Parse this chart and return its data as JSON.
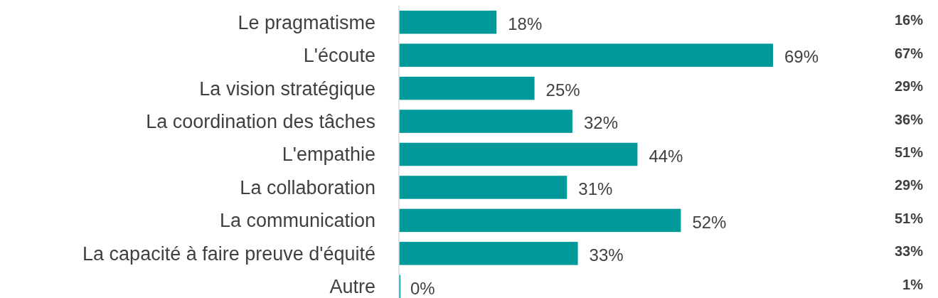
{
  "chart_data": {
    "type": "bar",
    "orientation": "horizontal",
    "categories": [
      "Le pragmatisme",
      "L'écoute",
      "La vision stratégique",
      "La coordination des tâches",
      "L'empathie",
      "La collaboration",
      "La communication",
      "La capacité à faire preuve d'équité",
      "Autre"
    ],
    "series": [
      {
        "color": "#009999",
        "values": [
          18,
          69,
          25,
          32,
          44,
          31,
          52,
          33,
          0
        ],
        "value_labels": [
          "18%",
          "69%",
          "25%",
          "32%",
          "44%",
          "31%",
          "52%",
          "33%",
          "0%"
        ]
      }
    ],
    "annotations": [
      "16%",
      "67%",
      "29%",
      "36%",
      "51%",
      "29%",
      "51%",
      "33%",
      "1%"
    ]
  }
}
